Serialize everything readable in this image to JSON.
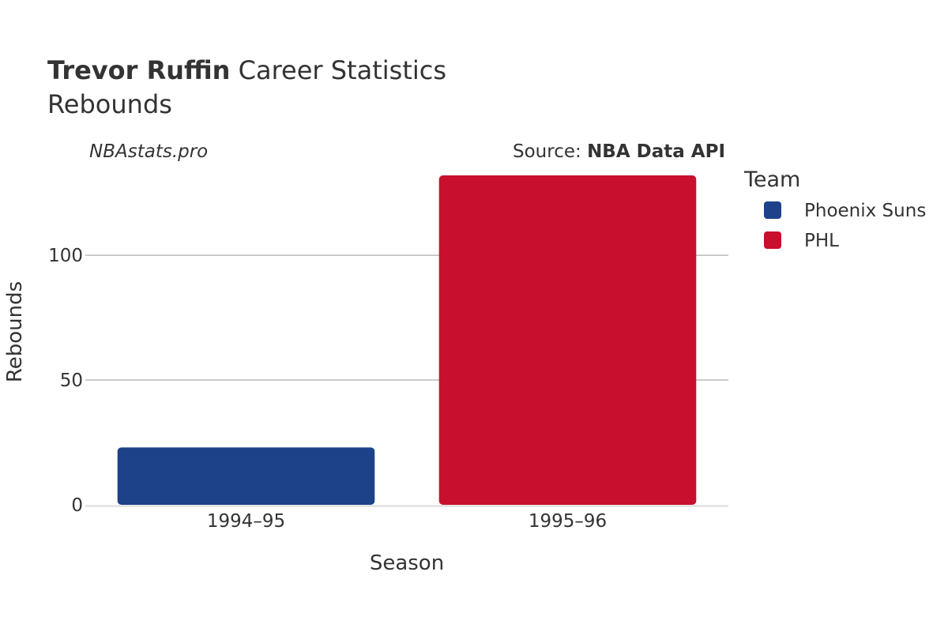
{
  "chart_data": {
    "type": "bar",
    "title_bold": "Trevor Ruffin",
    "title_rest": " Career Statistics",
    "subtitle": "Rebounds",
    "watermark": "NBAstats.pro",
    "source_prefix": "Source: ",
    "source_name": "NBA Data API",
    "xlabel": "Season",
    "ylabel": "Rebounds",
    "categories": [
      "1994–95",
      "1995–96"
    ],
    "ylim": [
      0,
      132
    ],
    "yticks": [
      0,
      50,
      100
    ],
    "grid": true,
    "legend_title": "Team",
    "legend_position": "right",
    "series": [
      {
        "name": "Phoenix Suns",
        "color": "#1d428a",
        "values": [
          23,
          null
        ]
      },
      {
        "name": "PHL",
        "color": "#c8102e",
        "values": [
          null,
          132
        ]
      }
    ]
  }
}
